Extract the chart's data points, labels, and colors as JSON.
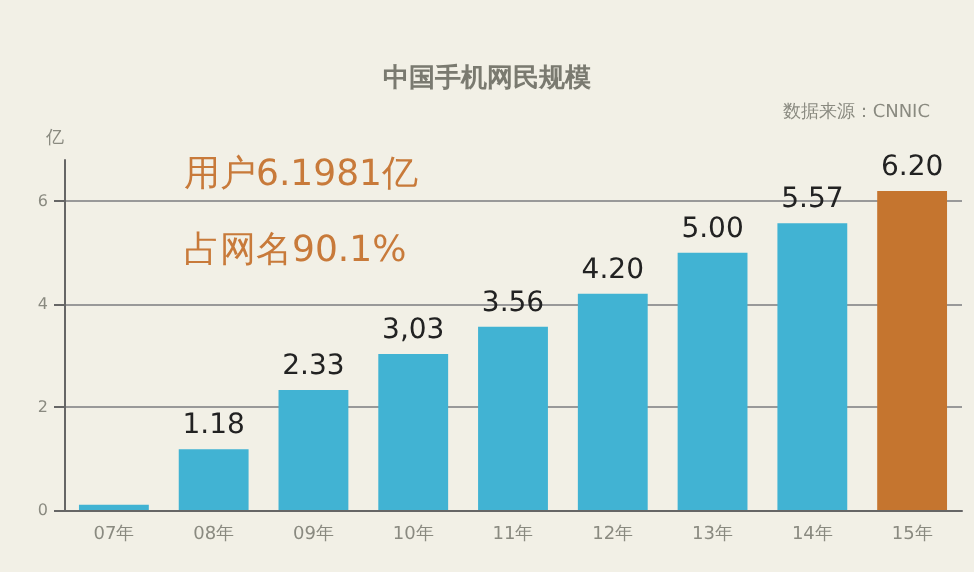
{
  "chart_data": {
    "type": "bar",
    "title": "中国手机网民规模",
    "ylabel": "亿",
    "categories": [
      "07年",
      "08年",
      "09年",
      "10年",
      "11年",
      "12年",
      "13年",
      "14年",
      "15年"
    ],
    "values": [
      0.1,
      1.18,
      2.33,
      3.03,
      3.56,
      4.2,
      5.0,
      5.57,
      6.2
    ],
    "value_labels": [
      null,
      "1.18",
      "2.33",
      "3,03",
      "3.56",
      "4.20",
      "5.00",
      "5.57",
      "6.20"
    ],
    "colors": [
      "#41b3d3",
      "#41b3d3",
      "#41b3d3",
      "#41b3d3",
      "#41b3d3",
      "#41b3d3",
      "#41b3d3",
      "#41b3d3",
      "#c5752f"
    ],
    "ylim": [
      0,
      6.8
    ],
    "yticks": [
      0,
      2,
      4,
      6
    ],
    "grid": "y",
    "annotations": [
      "用户6.1981亿",
      "占网名90.1%",
      "数据来源：CNNIC"
    ]
  }
}
